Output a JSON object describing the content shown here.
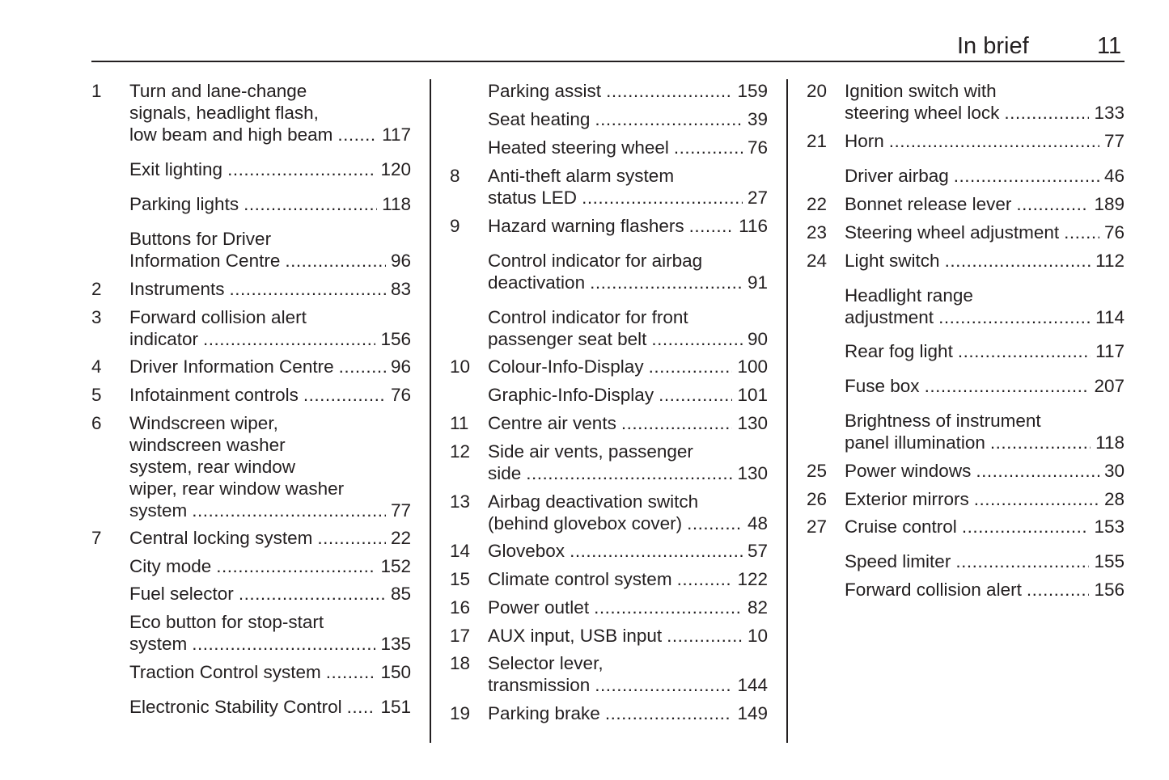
{
  "header": {
    "title": "In brief",
    "page_number": "11"
  },
  "columns": [
    [
      {
        "num": "1",
        "lines": [
          "Turn and lane-change",
          "signals, headlight flash,",
          "low beam and high beam"
        ],
        "page": "117"
      },
      {
        "num": "",
        "lines": [
          "Exit lighting"
        ],
        "page": "120"
      },
      {
        "num": "",
        "lines": [
          "Parking lights"
        ],
        "page": "118"
      },
      {
        "num": "",
        "lines": [
          "Buttons for Driver",
          "Information Centre"
        ],
        "page": "96"
      },
      {
        "num": "2",
        "lines": [
          "Instruments"
        ],
        "page": "83"
      },
      {
        "num": "3",
        "lines": [
          "Forward collision alert",
          "indicator"
        ],
        "page": "156"
      },
      {
        "num": "4",
        "lines": [
          "Driver Information Centre"
        ],
        "page": "96"
      },
      {
        "num": "5",
        "lines": [
          "Infotainment controls"
        ],
        "page": "76"
      },
      {
        "num": "6",
        "lines": [
          "Windscreen wiper,",
          "windscreen washer",
          "system, rear window",
          "wiper, rear window washer",
          "system"
        ],
        "page": "77"
      },
      {
        "num": "7",
        "lines": [
          "Central locking system"
        ],
        "page": "22"
      },
      {
        "num": "",
        "lines": [
          "City mode"
        ],
        "page": "152"
      },
      {
        "num": "",
        "lines": [
          "Fuel selector"
        ],
        "page": "85"
      },
      {
        "num": "",
        "lines": [
          "Eco button for stop-start",
          "system"
        ],
        "page": "135"
      },
      {
        "num": "",
        "lines": [
          "Traction Control system"
        ],
        "page": "150"
      },
      {
        "num": "",
        "lines": [
          "Electronic Stability Control"
        ],
        "page": "151"
      }
    ],
    [
      {
        "num": "",
        "lines": [
          "Parking assist"
        ],
        "page": "159"
      },
      {
        "num": "",
        "lines": [
          "Seat heating"
        ],
        "page": "39"
      },
      {
        "num": "",
        "lines": [
          "Heated steering wheel"
        ],
        "page": "76"
      },
      {
        "num": "8",
        "lines": [
          "Anti-theft alarm system",
          "status LED"
        ],
        "page": "27"
      },
      {
        "num": "9",
        "lines": [
          "Hazard warning flashers"
        ],
        "page": "116"
      },
      {
        "num": "",
        "lines": [
          "Control indicator for airbag",
          "deactivation"
        ],
        "page": "91"
      },
      {
        "num": "",
        "lines": [
          "Control indicator for front",
          "passenger seat belt"
        ],
        "page": "90"
      },
      {
        "num": "10",
        "lines": [
          "Colour-Info-Display"
        ],
        "page": "100"
      },
      {
        "num": "",
        "lines": [
          "Graphic-Info-Display"
        ],
        "page": "101"
      },
      {
        "num": "11",
        "lines": [
          "Centre air vents"
        ],
        "page": "130"
      },
      {
        "num": "12",
        "lines": [
          "Side air vents, passenger",
          "side"
        ],
        "page": "130"
      },
      {
        "num": "13",
        "lines": [
          "Airbag deactivation switch",
          "(behind glovebox cover)"
        ],
        "page": "48"
      },
      {
        "num": "14",
        "lines": [
          "Glovebox"
        ],
        "page": "57"
      },
      {
        "num": "15",
        "lines": [
          "Climate control system"
        ],
        "page": "122"
      },
      {
        "num": "16",
        "lines": [
          "Power outlet"
        ],
        "page": "82"
      },
      {
        "num": "17",
        "lines": [
          "AUX input, USB input"
        ],
        "page": "10"
      },
      {
        "num": "18",
        "lines": [
          "Selector lever,",
          "transmission"
        ],
        "page": "144"
      },
      {
        "num": "19",
        "lines": [
          "Parking brake"
        ],
        "page": "149"
      }
    ],
    [
      {
        "num": "20",
        "lines": [
          "Ignition switch with",
          "steering wheel lock"
        ],
        "page": "133"
      },
      {
        "num": "21",
        "lines": [
          "Horn"
        ],
        "page": "77"
      },
      {
        "num": "",
        "lines": [
          "Driver airbag"
        ],
        "page": "46"
      },
      {
        "num": "22",
        "lines": [
          "Bonnet release lever"
        ],
        "page": "189"
      },
      {
        "num": "23",
        "lines": [
          "Steering wheel adjustment"
        ],
        "page": "76"
      },
      {
        "num": "24",
        "lines": [
          "Light switch"
        ],
        "page": "112"
      },
      {
        "num": "",
        "lines": [
          "Headlight range",
          "adjustment"
        ],
        "page": "114"
      },
      {
        "num": "",
        "lines": [
          "Rear fog light"
        ],
        "page": "117"
      },
      {
        "num": "",
        "lines": [
          "Fuse box"
        ],
        "page": "207"
      },
      {
        "num": "",
        "lines": [
          "Brightness of instrument",
          "panel illumination"
        ],
        "page": "118"
      },
      {
        "num": "25",
        "lines": [
          "Power windows"
        ],
        "page": "30"
      },
      {
        "num": "26",
        "lines": [
          "Exterior mirrors"
        ],
        "page": "28"
      },
      {
        "num": "27",
        "lines": [
          "Cruise control"
        ],
        "page": "153"
      },
      {
        "num": "",
        "lines": [
          "Speed limiter"
        ],
        "page": "155"
      },
      {
        "num": "",
        "lines": [
          "Forward collision alert"
        ],
        "page": "156"
      }
    ]
  ]
}
